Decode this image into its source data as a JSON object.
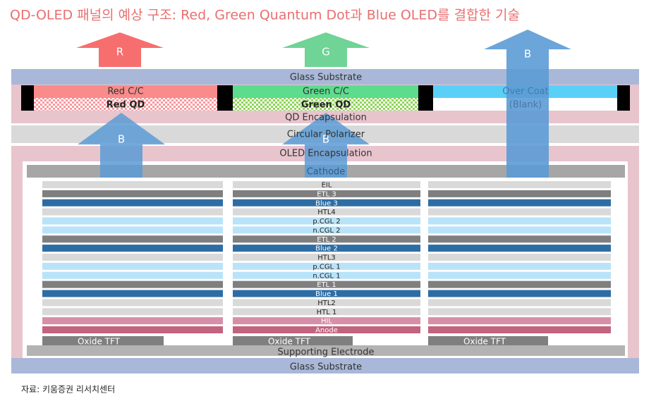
{
  "title": "QD-OLED 패널의 예상 구조: Red, Green Quantum Dot과 Blue OLED를 결합한 기술",
  "arrows": {
    "top": [
      "R",
      "G",
      "B"
    ],
    "middle": [
      "B",
      "B"
    ]
  },
  "top_glass": "Glass Substrate",
  "color_filters": [
    "Red C/C",
    "Green C/C",
    "Over Coat"
  ],
  "qd_layers": [
    "Red QD",
    "Green QD",
    "(Blank)"
  ],
  "qd_encapsulation": "QD Encapsulation",
  "polarizer": "Circular Polarizer",
  "oled_encapsulation": "OLED Encapsulation",
  "cathode": "Cathode",
  "stack": [
    "EIL",
    "ETL 3",
    "Blue 3",
    "HTL4",
    "p.CGL 2",
    "n.CGL 2",
    "ETL 2",
    "Blue 2",
    "HTL3",
    "p.CGL 1",
    "n.CGL 1",
    "ETL 1",
    "Blue 1",
    "HTL2",
    "HTL 1",
    "HIL",
    "Anode"
  ],
  "tft": [
    "Oxide TFT",
    "Oxide TFT",
    "Oxide TFT"
  ],
  "supporting_electrode": "Supporting Electrode",
  "bottom_glass": "Glass Substrate",
  "source": "자료: 키움증권 리서치센터"
}
